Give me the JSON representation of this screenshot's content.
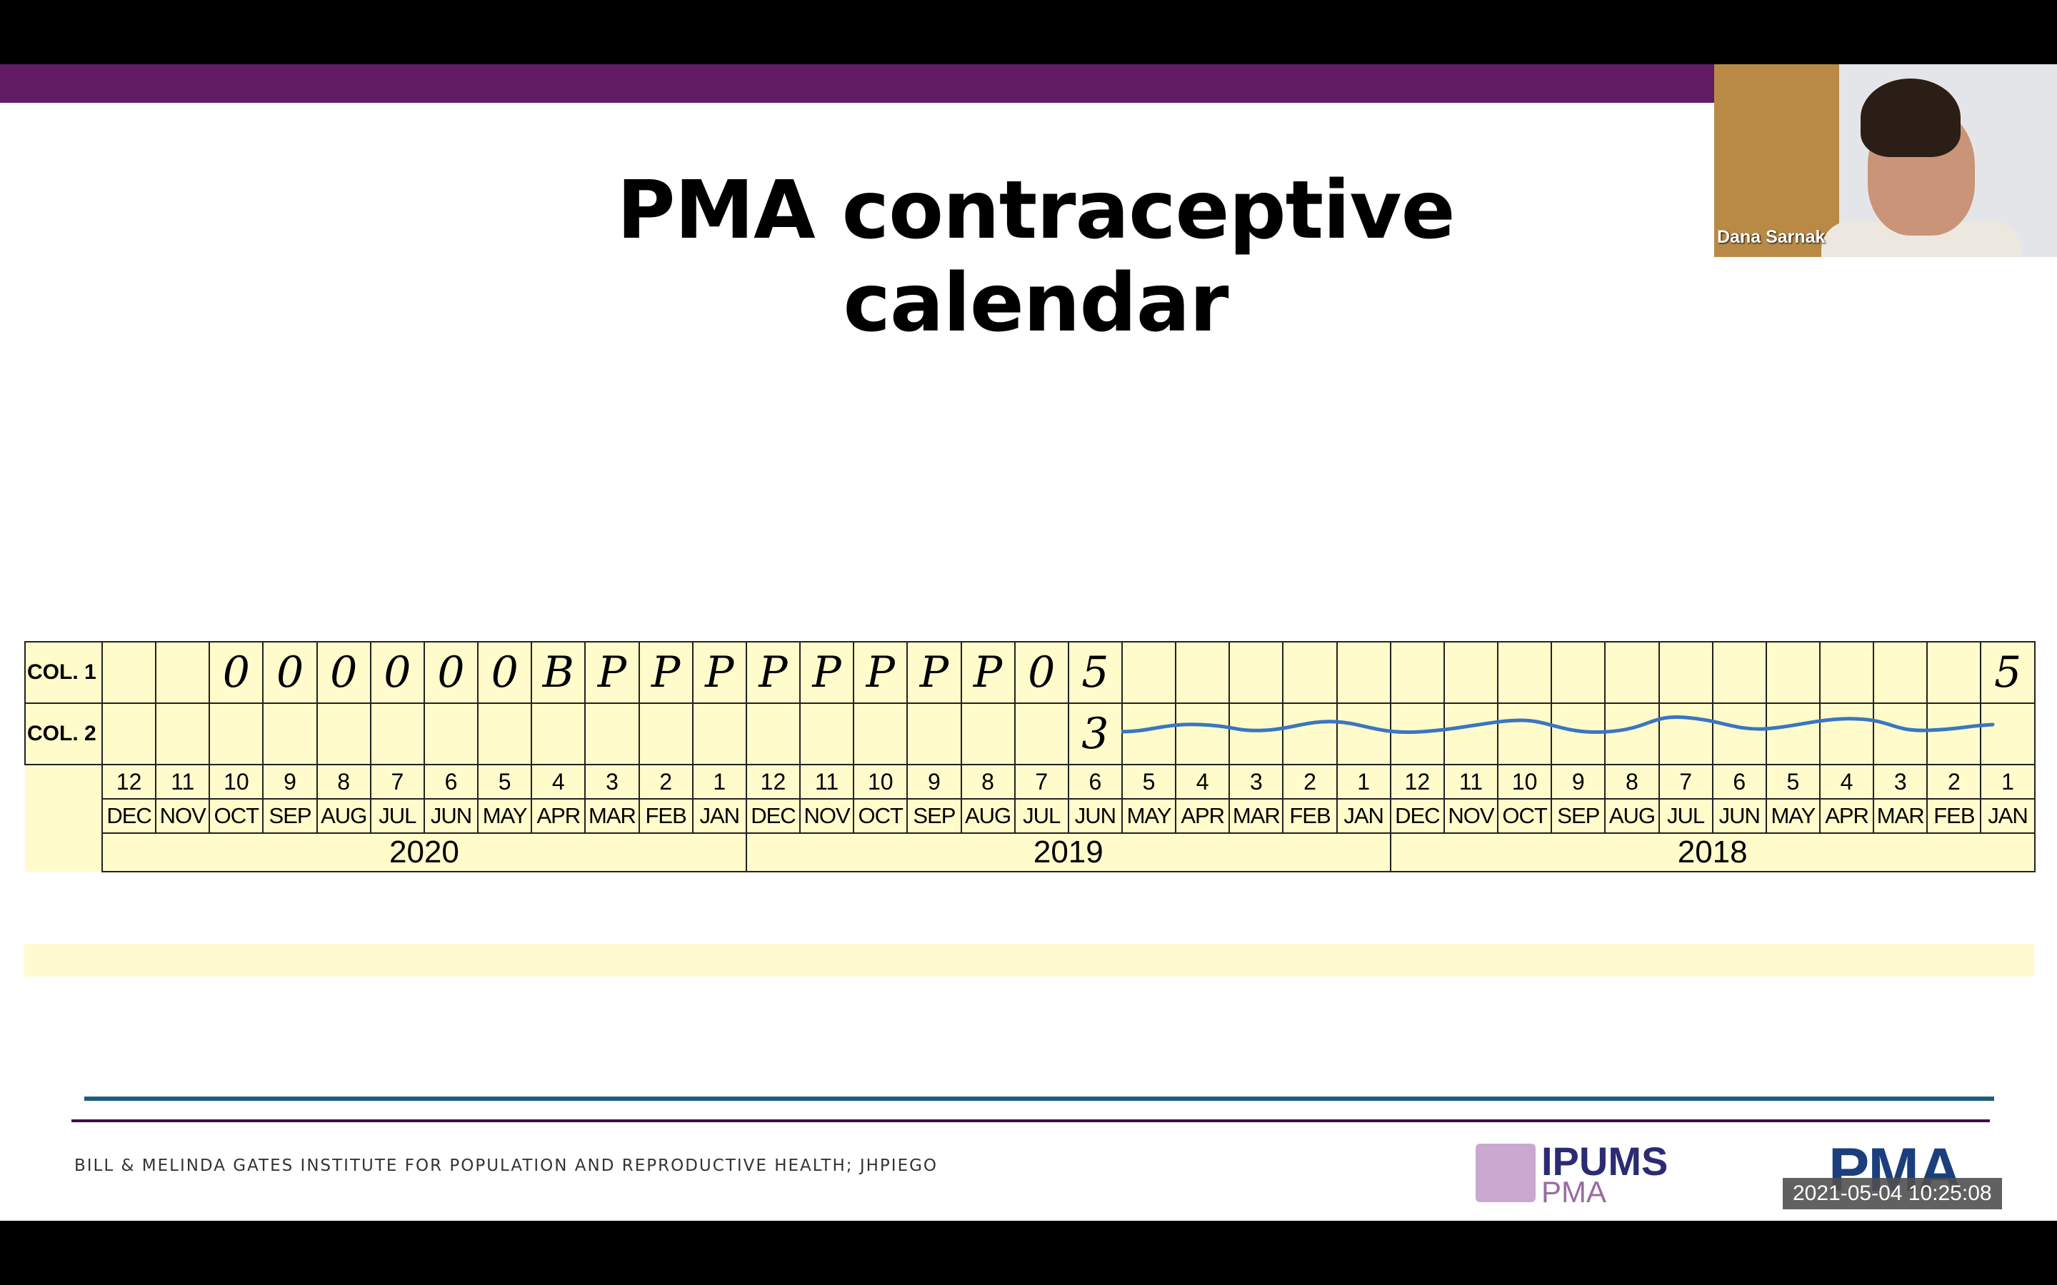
{
  "slide": {
    "title": "PMA contraceptive calendar",
    "footer_text": "BILL & MELINDA GATES INSTITUTE FOR POPULATION AND REPRODUCTIVE HEALTH; JHPIEGO",
    "logo_ipums": {
      "line1": "IPUMS",
      "line2": "PMA"
    },
    "logo_pma": "PMA",
    "colors": {
      "top_bar": "#601b63",
      "calendar_fill": "#fffbcb",
      "handwriting": "#3a76c0"
    }
  },
  "calendar": {
    "row_labels": [
      "COL. 1",
      "COL. 2"
    ],
    "col1_entries": [
      "",
      "",
      "0",
      "0",
      "0",
      "0",
      "0",
      "0",
      "B",
      "P",
      "P",
      "P",
      "P",
      "P",
      "P",
      "P",
      "P",
      "0",
      "5",
      "",
      "",
      "",
      "",
      "",
      "",
      "",
      "",
      "",
      "",
      "",
      "",
      "",
      "",
      "",
      "",
      "5"
    ],
    "col2_entries": [
      "",
      "",
      "",
      "",
      "",
      "",
      "",
      "",
      "",
      "",
      "",
      "",
      "",
      "",
      "",
      "",
      "",
      "",
      "3",
      "",
      "",
      "",
      "",
      "",
      "",
      "",
      "",
      "",
      "",
      "",
      "",
      "",
      "",
      "",
      "",
      ""
    ],
    "month_numbers": [
      "12",
      "11",
      "10",
      "9",
      "8",
      "7",
      "6",
      "5",
      "4",
      "3",
      "2",
      "1",
      "12",
      "11",
      "10",
      "9",
      "8",
      "7",
      "6",
      "5",
      "4",
      "3",
      "2",
      "1",
      "12",
      "11",
      "10",
      "9",
      "8",
      "7",
      "6",
      "5",
      "4",
      "3",
      "2",
      "1"
    ],
    "month_names": [
      "DEC",
      "NOV",
      "OCT",
      "SEP",
      "AUG",
      "JUL",
      "JUN",
      "MAY",
      "APR",
      "MAR",
      "FEB",
      "JAN",
      "DEC",
      "NOV",
      "OCT",
      "SEP",
      "AUG",
      "JUL",
      "JUN",
      "MAY",
      "APR",
      "MAR",
      "FEB",
      "JAN",
      "DEC",
      "NOV",
      "OCT",
      "SEP",
      "AUG",
      "JUL",
      "JUN",
      "MAY",
      "APR",
      "MAR",
      "FEB",
      "JAN"
    ],
    "years": [
      "2020",
      "2019",
      "2018"
    ]
  },
  "video": {
    "participant_name": "Dana Sarnak"
  },
  "timestamp": "2021-05-04 10:25:08"
}
